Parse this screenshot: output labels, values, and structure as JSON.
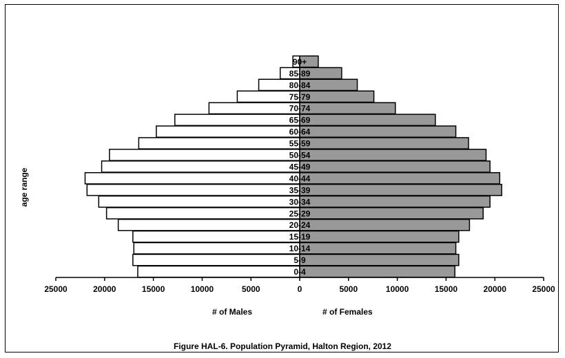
{
  "chart_data": {
    "type": "bar",
    "orientation": "horizontal",
    "subtype": "population-pyramid",
    "title": "Figure HAL-6.  Population Pyramid, Halton Region, 2012",
    "ylabel": "age range",
    "xlabel_left": "# of Males",
    "xlabel_right": "# of  Females",
    "categories": [
      "0-4",
      "5-9",
      "10-14",
      "15-19",
      "20-24",
      "25-29",
      "30-34",
      "35-39",
      "40-44",
      "45-49",
      "50-54",
      "55-59",
      "60-64",
      "65-69",
      "70-74",
      "75-79",
      "80-84",
      "85-89",
      "90+"
    ],
    "series": [
      {
        "name": "# of Males",
        "color": "#ffffff",
        "values": [
          16600,
          17100,
          17000,
          17100,
          18600,
          19800,
          20600,
          21800,
          22000,
          20300,
          19500,
          16500,
          14700,
          12800,
          9300,
          6400,
          4200,
          2000,
          700
        ]
      },
      {
        "name": "# of  Females",
        "color": "#999999",
        "values": [
          15900,
          16300,
          16000,
          16300,
          17400,
          18800,
          19500,
          20700,
          20500,
          19500,
          19100,
          17300,
          16000,
          13900,
          9800,
          7600,
          5900,
          4300,
          1900
        ]
      }
    ],
    "xlim": [
      -25000,
      25000
    ],
    "xticks": [
      -25000,
      -20000,
      -15000,
      -10000,
      -5000,
      0,
      5000,
      10000,
      15000,
      20000,
      25000
    ],
    "xtick_labels": [
      "25000",
      "20000",
      "15000",
      "10000",
      "5000",
      "0",
      "5000",
      "10000",
      "15000",
      "20000",
      "25000"
    ],
    "grid": false,
    "legend": "none"
  }
}
